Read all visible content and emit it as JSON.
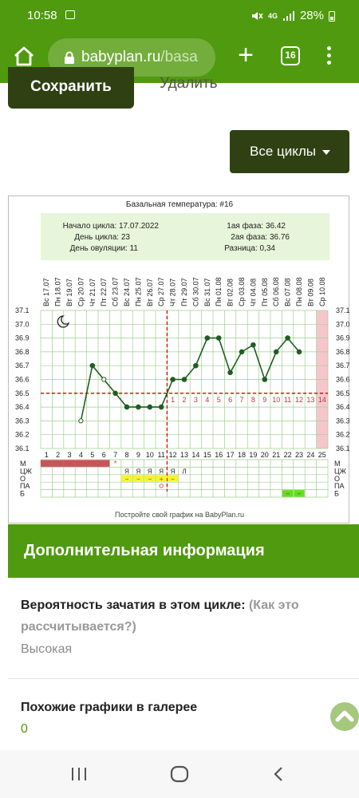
{
  "status": {
    "time": "10:58",
    "battery": "28%",
    "network": "4G"
  },
  "browser": {
    "url_host": "babyplan.ru",
    "url_rest": "/basa",
    "tab_count": "16"
  },
  "actions": {
    "save": "Сохранить",
    "delete": "Удалить",
    "all_cycles": "Все циклы"
  },
  "chart_header": {
    "title": "Базальная температура: #16",
    "cycle_start": "Начало цикла: 17.07.2022",
    "cycle_day": "День цикла: 23",
    "ovulation_day": "День овуляции: 11",
    "phase1": "1ая фаза: 36.42",
    "phase2": "2ая фаза: 36.76",
    "difference": "Разница: 0,34",
    "footer": "Постройте свой график на BabyPlan.ru"
  },
  "chart_data": {
    "type": "line",
    "title": "Базальная температура: #16",
    "x": [
      1,
      2,
      3,
      4,
      5,
      6,
      7,
      8,
      9,
      10,
      11,
      12,
      13,
      14,
      15,
      16,
      17,
      18,
      19,
      20,
      21,
      22,
      23,
      24,
      25
    ],
    "dates": [
      "Вс 17.07",
      "Пн 18.07",
      "Вт 19.07",
      "Ср 20.07",
      "Чт 21.07",
      "Пт 22.07",
      "Сб 23.07",
      "Вс 24.07",
      "Пн 25.07",
      "Вт 26.07",
      "Ср 27.07",
      "Чт 28.07",
      "Пт 29.07",
      "Сб 30.07",
      "Вс 31.07",
      "Пн 01.08",
      "Вт 02.08",
      "Ср 03.08",
      "Чт 04.08",
      "Пт 05.08",
      "Сб 06.08",
      "Вс 07.08",
      "Пн 08.08",
      "Вт 09.08",
      "Ср 10.08"
    ],
    "series": [
      {
        "values": [
          null,
          null,
          null,
          36.3,
          36.7,
          36.6,
          36.5,
          36.4,
          36.4,
          36.4,
          36.4,
          36.6,
          36.6,
          36.7,
          36.9,
          36.9,
          36.65,
          36.8,
          36.85,
          36.6,
          36.8,
          36.9,
          36.8,
          null,
          null
        ]
      }
    ],
    "open_points": [
      4,
      6
    ],
    "ylim": [
      36.1,
      37.1
    ],
    "yticks": [
      "36.1",
      "36.2",
      "36.3",
      "36.4",
      "36.5",
      "36.6",
      "36.7",
      "36.8",
      "36.9",
      "37.0",
      "37.1"
    ],
    "coverline": 36.5,
    "ovulation_day": 11,
    "luteal_labels": [
      "1",
      "2",
      "3",
      "4",
      "5",
      "6",
      "7",
      "8",
      "9",
      "10",
      "11",
      "12",
      "13",
      "14"
    ],
    "highlight_day": 25,
    "row_labels": [
      "М",
      "ЦЖ",
      "О",
      "ПА",
      "Б"
    ],
    "right_row_labels": [
      "М",
      "ЦЖ",
      "О",
      "ПА",
      "Б"
    ],
    "m_days": [
      1,
      2,
      3,
      4,
      5,
      6
    ],
    "star_day": 7,
    "cm_marks": [
      {
        "day": 8,
        "text": "Я"
      },
      {
        "day": 9,
        "text": "Я"
      },
      {
        "day": 10,
        "text": "Я"
      },
      {
        "day": 11,
        "text": "Я"
      },
      {
        "day": 12,
        "text": "Я"
      },
      {
        "day": 13,
        "text": "Л"
      }
    ],
    "o_marks": [
      {
        "day": 8,
        "text": "−"
      },
      {
        "day": 9,
        "text": "−"
      },
      {
        "day": 10,
        "text": "−"
      },
      {
        "day": 11,
        "text": "+"
      },
      {
        "day": 12,
        "text": "−"
      }
    ],
    "pa_mark_day": 11,
    "b_days": [
      22,
      23
    ],
    "colors": {
      "line": "#1f5f1f",
      "cover": "#d00000",
      "grid": "#9ecf8f",
      "m": "#c9535a",
      "o": "#f4f430",
      "b": "#66dd22",
      "luteal": "#c0393b",
      "highlight": "#f6c6cc"
    }
  },
  "info": {
    "section_title": "Дополнительная информация",
    "probability_label": "Вероятность зачатия в этом цикле:",
    "probability_link_line1": "(Как это",
    "probability_link_line2": "рассчитывается?)",
    "probability_line2_prefix": "",
    "probability_value": "Высокая",
    "similar_label": "Похожие графики в галерее",
    "similar_value": "0"
  }
}
